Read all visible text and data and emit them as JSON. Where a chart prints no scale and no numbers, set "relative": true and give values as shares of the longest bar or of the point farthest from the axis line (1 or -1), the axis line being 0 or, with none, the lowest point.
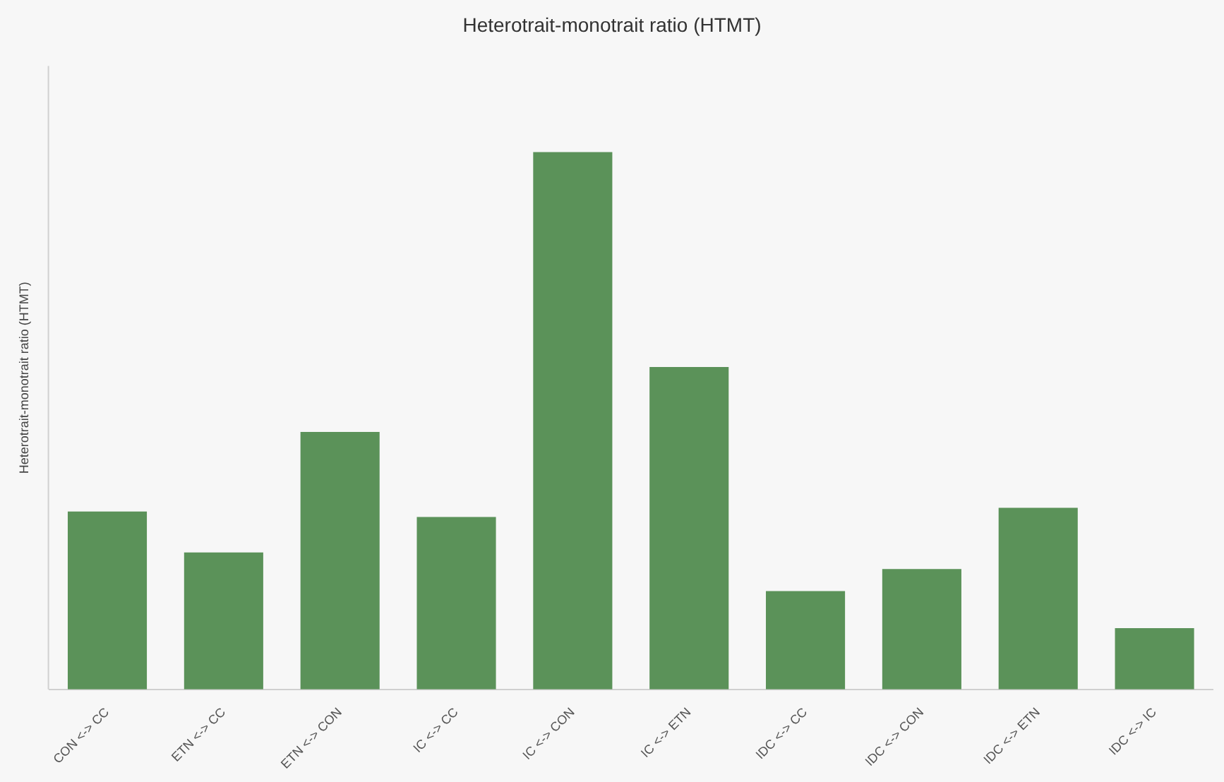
{
  "chart_data": {
    "type": "bar",
    "title": "Heterotrait-monotrait ratio (HTMT)",
    "ylabel": "Heterotrait-monotrait ratio (HTMT)",
    "categories": [
      "CON <-> CC",
      "ETN <-> CC",
      "ETN <-> CON",
      "IC <-> CC",
      "IC <-> CON",
      "IC <-> ETN",
      "IDC <-> CC",
      "IDC <-> CON",
      "IDC <-> ETN",
      "IDC <-> IC"
    ],
    "values": [
      0.331,
      0.255,
      0.479,
      0.321,
      1,
      0.6,
      0.183,
      0.224,
      0.338,
      0.114
    ],
    "color": "#5b9259",
    "relative": true,
    "grid": false,
    "legend": false
  }
}
